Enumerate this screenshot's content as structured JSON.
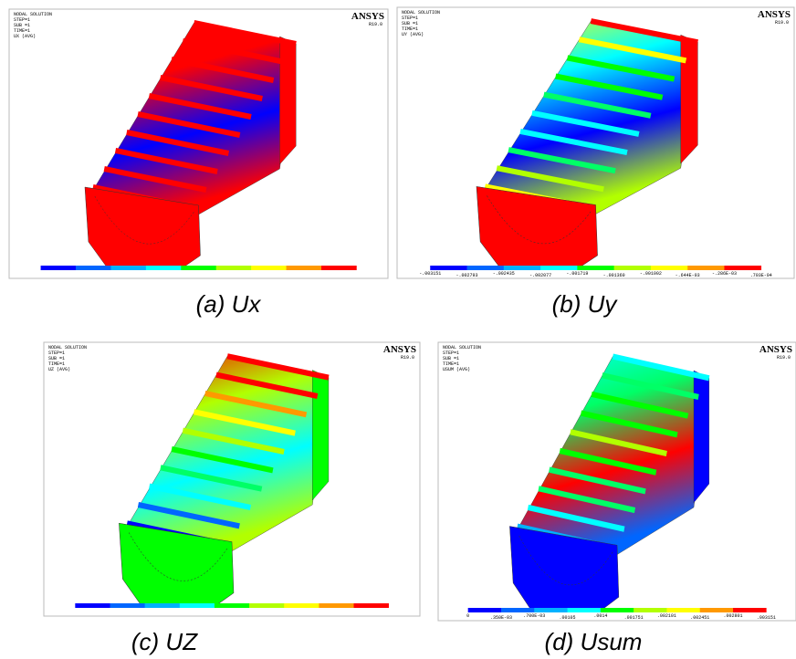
{
  "panels": [
    {
      "caption": "(a) Ux",
      "brand": "ANSYS",
      "version": "R19.0",
      "info": [
        "NODAL SOLUTION",
        "STEP=1",
        "SUB =1",
        "TIME=1",
        "UX (AVG)"
      ]
    },
    {
      "caption": "(b) Uy",
      "brand": "ANSYS",
      "version": "R19.0",
      "info": [
        "NODAL SOLUTION",
        "STEP=1",
        "SUB =1",
        "TIME=1",
        "UY (AVG)"
      ],
      "colorbar_labels": [
        "-.003151",
        "-.002793",
        "-.002435",
        "-.002077",
        "-.001719",
        "-.001360",
        "-.001002",
        "-.644E-03",
        "-.286E-03",
        ".703E-04"
      ]
    },
    {
      "caption": "(c) UZ",
      "brand": "ANSYS",
      "version": "R19.0",
      "info": [
        "NODAL SOLUTION",
        "STEP=1",
        "SUB =1",
        "TIME=1",
        "UZ (AVG)"
      ]
    },
    {
      "caption": "(d) Usum",
      "brand": "ANSYS",
      "version": "R19.0",
      "info": [
        "NODAL SOLUTION",
        "STEP=1",
        "SUB =1",
        "TIME=1",
        "USUM (AVG)"
      ],
      "colorbar_labels": [
        "0",
        ".350E-03",
        ".700E-03",
        ".00105",
        ".0014",
        ".001751",
        ".002101",
        ".002451",
        ".002801",
        ".003151"
      ]
    }
  ]
}
